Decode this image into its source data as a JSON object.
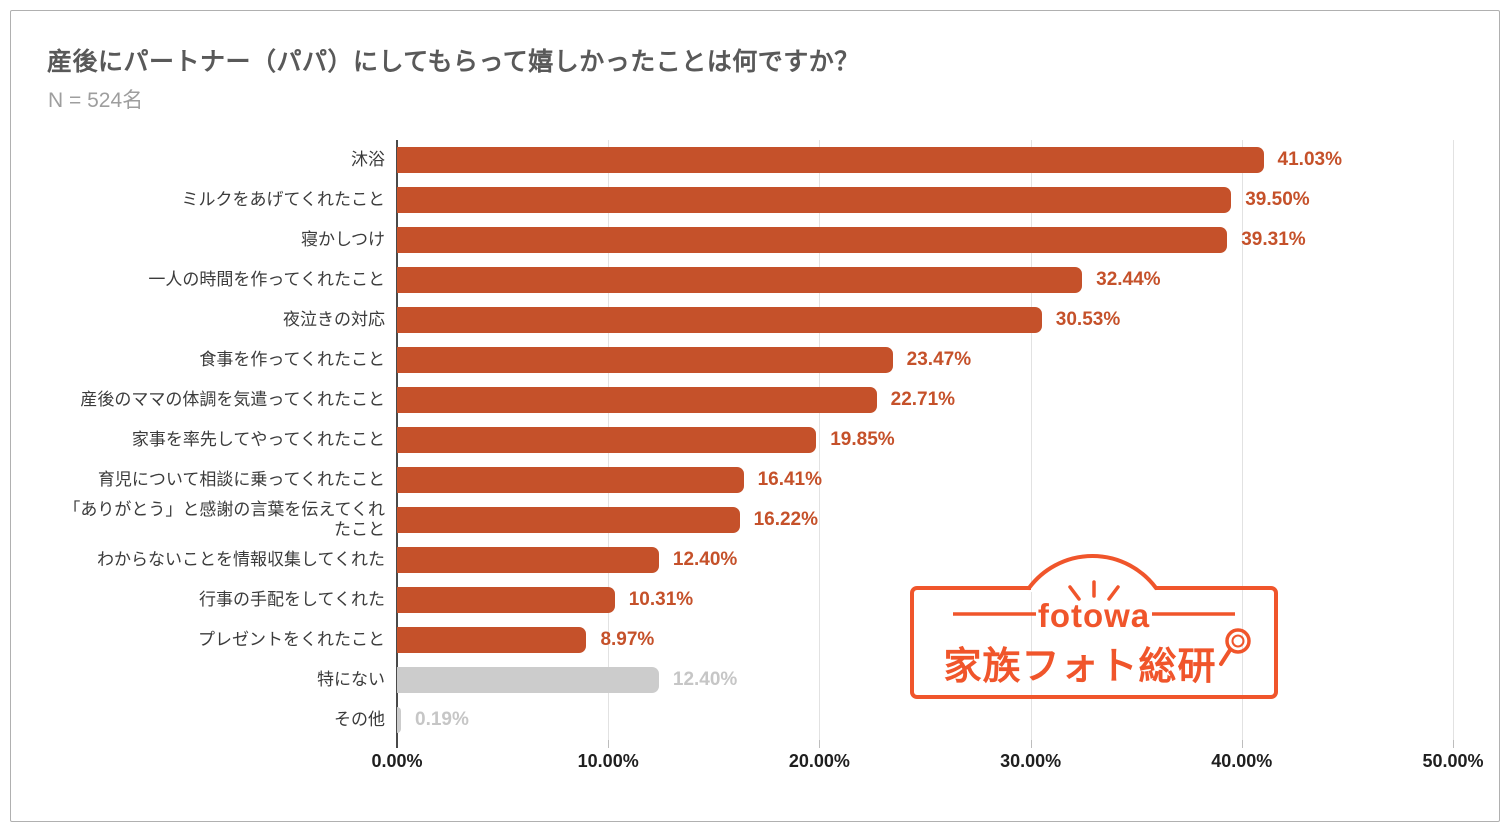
{
  "header": {
    "title": "産後にパートナー（パパ）にしてもらって嬉しかったことは何ですか？",
    "sample_size": "N = 524名"
  },
  "chart_data": {
    "type": "bar",
    "orientation": "horizontal",
    "title": "産後にパートナー（パパ）にしてもらって嬉しかったことは何ですか？",
    "subtitle": "N = 524名",
    "categories": [
      "沐浴",
      "ミルクをあげてくれたこと",
      "寝かしつけ",
      "一人の時間を作ってくれたこと",
      "夜泣きの対応",
      "食事を作ってくれたこと",
      "産後のママの体調を気遣ってくれたこと",
      "家事を率先してやってくれたこと",
      "育児について相談に乗ってくれたこと",
      "「ありがとう」と感謝の言葉を伝えてくれたこと",
      "わからないことを情報収集してくれた",
      "行事の手配をしてくれた",
      "プレゼントをくれたこと",
      "特にない",
      "その他"
    ],
    "values": [
      41.03,
      39.5,
      39.31,
      32.44,
      30.53,
      23.47,
      22.71,
      19.85,
      16.41,
      16.22,
      12.4,
      10.31,
      8.97,
      12.4,
      0.19
    ],
    "value_labels": [
      "41.03%",
      "39.50%",
      "39.31%",
      "32.44%",
      "30.53%",
      "23.47%",
      "22.71%",
      "19.85%",
      "16.41%",
      "16.22%",
      "12.40%",
      "10.31%",
      "8.97%",
      "12.40%",
      "0.19%"
    ],
    "muted": [
      false,
      false,
      false,
      false,
      false,
      false,
      false,
      false,
      false,
      false,
      false,
      false,
      false,
      true,
      true
    ],
    "x_ticks": [
      "0.00%",
      "10.00%",
      "20.00%",
      "30.00%",
      "40.00%",
      "50.00%"
    ],
    "xlim": [
      0,
      50
    ],
    "grid": true,
    "legend": "none",
    "colors": {
      "bar": "#c5512a",
      "muted_bar": "#cccccc",
      "value_label": "#c5512a",
      "muted_value_label": "#c6c6c6",
      "gridline": "#e2e2e2",
      "axis_line": "#4a4a4a"
    }
  },
  "logo": {
    "brand": "fotowa",
    "name": "家族フォト総研",
    "color": "#F0552B"
  }
}
